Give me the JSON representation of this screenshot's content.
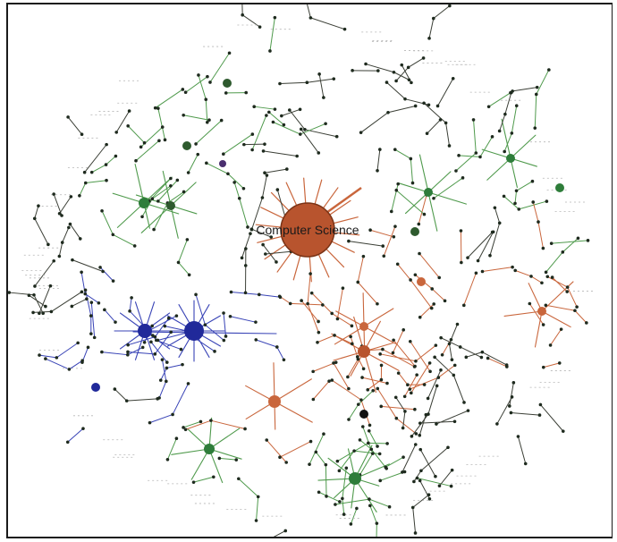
{
  "diagram": {
    "type": "network-graph",
    "hub_label": "Computer Science",
    "colors": {
      "background": "#ffffff",
      "frame": "#1a1a1a",
      "edge_default": "#3b3f36",
      "edge_green": "#4f9a4c",
      "edge_orange": "#c9663c",
      "edge_blue": "#3843b6",
      "node_default": "#1e2a1e",
      "hub_orange": "#b8542e",
      "hub_blue": "#20299a",
      "hub_green": "#2e7d3a"
    },
    "hubs": [
      {
        "id": "computer-science",
        "color": "orange",
        "size": "large",
        "label": "Computer Science"
      },
      {
        "id": "blue-hub-1",
        "color": "blue",
        "size": "medium",
        "label": ""
      },
      {
        "id": "blue-hub-2",
        "color": "blue",
        "size": "medium",
        "label": ""
      },
      {
        "id": "orange-hub-1",
        "color": "orange",
        "size": "small",
        "label": ""
      },
      {
        "id": "orange-hub-2",
        "color": "orange",
        "size": "small",
        "label": ""
      },
      {
        "id": "green-hub-1",
        "color": "green",
        "size": "small",
        "label": ""
      },
      {
        "id": "green-hub-2",
        "color": "green",
        "size": "small",
        "label": ""
      }
    ]
  }
}
